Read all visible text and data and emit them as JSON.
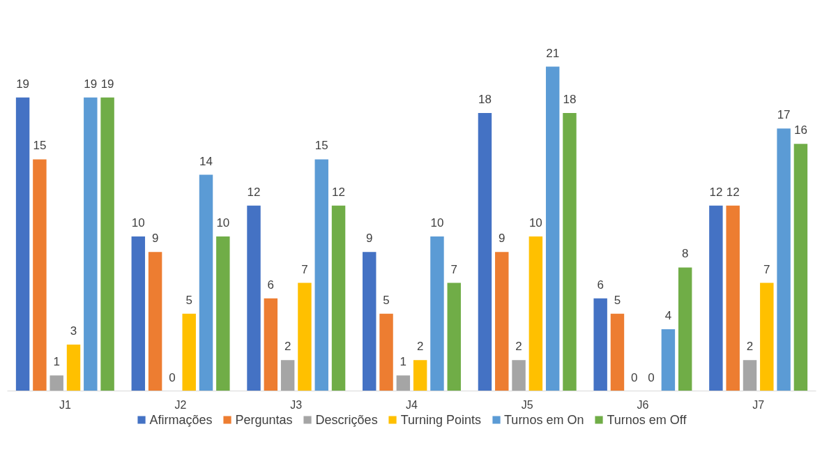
{
  "chart_data": {
    "type": "bar",
    "categories": [
      "J1",
      "J2",
      "J3",
      "J4",
      "J5",
      "J6",
      "J7"
    ],
    "series": [
      {
        "name": "Afirmações",
        "color": "#4472c4",
        "values": [
          19,
          10,
          12,
          9,
          18,
          6,
          12
        ]
      },
      {
        "name": "Perguntas",
        "color": "#ed7d31",
        "values": [
          15,
          9,
          6,
          5,
          9,
          5,
          12
        ]
      },
      {
        "name": "Descrições",
        "color": "#a5a5a5",
        "values": [
          1,
          0,
          2,
          1,
          2,
          0,
          2
        ]
      },
      {
        "name": "Turning Points",
        "color": "#ffc000",
        "values": [
          3,
          5,
          7,
          2,
          10,
          0,
          7
        ]
      },
      {
        "name": "Turnos em On",
        "color": "#5b9bd5",
        "values": [
          19,
          14,
          15,
          10,
          21,
          4,
          17
        ]
      },
      {
        "name": "Turnos em Off",
        "color": "#70ad47",
        "values": [
          19,
          10,
          12,
          7,
          18,
          8,
          16
        ]
      }
    ],
    "data_labels": true,
    "legend": "bottom",
    "grid": false
  }
}
